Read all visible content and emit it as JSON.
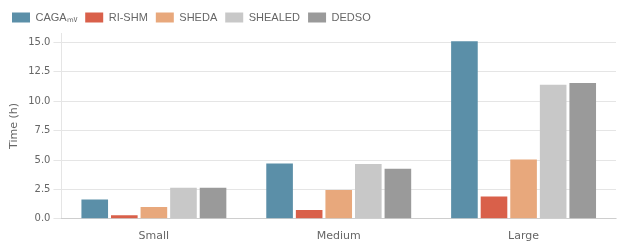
{
  "chart_data": {
    "type": "bar",
    "y_label": "Time (h)",
    "categories": [
      "Small",
      "Medium",
      "Large"
    ],
    "series": [
      {
        "name": "CAGAₘᵥ",
        "color": "#5b8fa8",
        "values": [
          1.65,
          4.7,
          15.1
        ]
      },
      {
        "name": "RI-SHM",
        "color": "#d9604a",
        "values": [
          0.3,
          0.75,
          1.9
        ]
      },
      {
        "name": "SHEDA",
        "color": "#e8a87c",
        "values": [
          1.0,
          2.45,
          5.05
        ]
      },
      {
        "name": "SHEALED",
        "color": "#c8c8c8",
        "values": [
          2.65,
          4.65,
          11.4
        ]
      },
      {
        "name": "DEDSO",
        "color": "#9a9a9a",
        "values": [
          2.65,
          4.25,
          11.55
        ]
      }
    ],
    "ylim": [
      0,
      15.8
    ],
    "yticks": [
      {
        "value": 0,
        "label": "0.0"
      },
      2.5,
      {
        "value": 5,
        "label": "5.0"
      },
      7.5,
      {
        "value": 10,
        "label": "10.0"
      },
      12.5,
      {
        "value": 15,
        "label": "15.0"
      }
    ],
    "grid": true,
    "legend": "upper left"
  }
}
